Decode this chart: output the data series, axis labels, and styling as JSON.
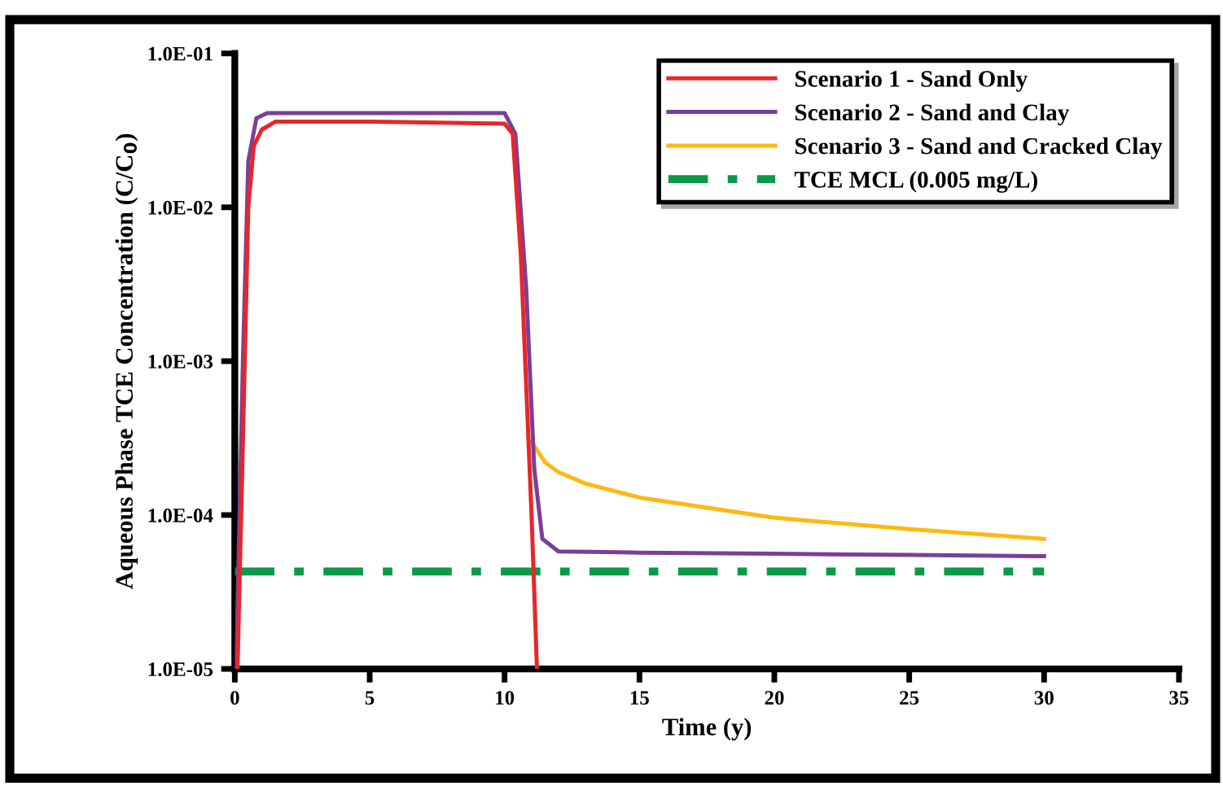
{
  "chart_data": {
    "type": "line",
    "xlabel": "Time (y)",
    "ylabel": "Aqueous Phase TCE Concentration (C/C$_{0}$)",
    "log": "y",
    "xlim": [
      0,
      35
    ],
    "xticks": [
      0,
      5,
      10,
      15,
      20,
      25,
      30,
      35
    ],
    "ylim": [
      1e-05,
      0.1
    ],
    "yticks": [
      {
        "value": 1e-05,
        "label": "1.0E-05"
      },
      {
        "value": 0.0001,
        "label": "1.0E-04"
      },
      {
        "value": 0.001,
        "label": "1.0E-03"
      },
      {
        "value": 0.01,
        "label": "1.0E-02"
      },
      {
        "value": 0.1,
        "label": "1.0E-01"
      }
    ],
    "grid": false,
    "legend": "top right",
    "marker": "none",
    "series": [
      {
        "name": "Scenario 1 - Sand Only",
        "color": "#e8262a",
        "x": [
          0.1,
          0.3,
          0.5,
          0.7,
          1.0,
          1.5,
          5,
          10,
          10.3,
          10.6,
          11.0,
          11.2
        ],
        "values": [
          1e-05,
          0.0003,
          0.01,
          0.025,
          0.032,
          0.036,
          0.036,
          0.035,
          0.03,
          0.005,
          0.0001,
          1e-05
        ]
      },
      {
        "name": "Scenario 2 - Sand and Clay",
        "color": "#7b3f98",
        "x": [
          0.05,
          0.3,
          0.5,
          0.8,
          1.2,
          5,
          10,
          10.4,
          10.8,
          11.1,
          11.4,
          12,
          15,
          20,
          25,
          30
        ],
        "values": [
          1e-05,
          0.001,
          0.02,
          0.038,
          0.041,
          0.041,
          0.041,
          0.03,
          0.003,
          0.0002,
          7e-05,
          5.8e-05,
          5.7e-05,
          5.6e-05,
          5.5e-05,
          5.4e-05
        ]
      },
      {
        "name": "Scenario 3 - Sand and Cracked Clay",
        "color": "#fdb913",
        "x": [
          11.0,
          11.5,
          12,
          13,
          15,
          20,
          25,
          30
        ],
        "values": [
          0.0003,
          0.00022,
          0.00019,
          0.00016,
          0.00013,
          9.6e-05,
          8.1e-05,
          7e-05
        ]
      },
      {
        "name": "TCE MCL (0.005 mg/L)",
        "color": "#0a9a48",
        "line_style": "dashdot",
        "x": [
          0,
          30
        ],
        "values": [
          4.3e-05,
          4.3e-05
        ]
      }
    ]
  }
}
